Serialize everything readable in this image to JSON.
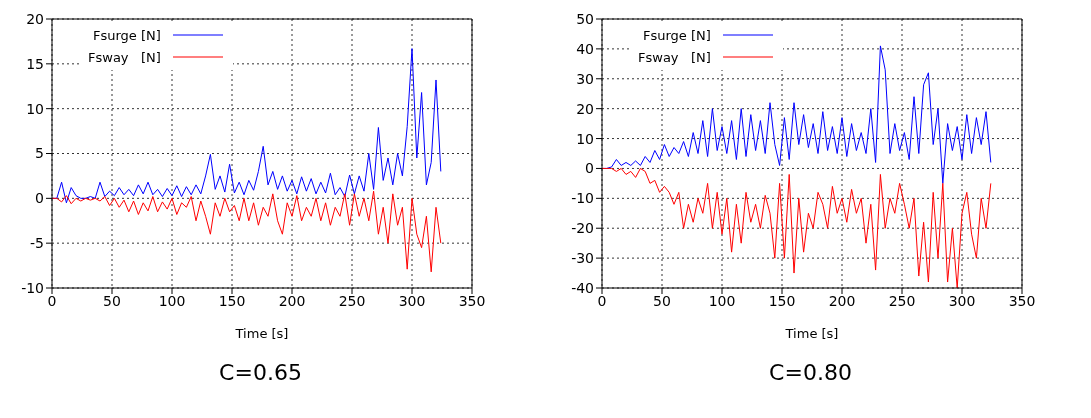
{
  "chart_data": [
    {
      "type": "line",
      "title": "C=0.65",
      "xlabel": "Time [s]",
      "xlim": [
        0,
        350
      ],
      "xticks": [
        0,
        50,
        100,
        150,
        200,
        250,
        300,
        350
      ],
      "ylim": [
        -10,
        20
      ],
      "yticks": [
        -10,
        -5,
        0,
        5,
        10,
        15,
        20
      ],
      "grid": true,
      "legend": "top left",
      "x": [
        0,
        4,
        8,
        12,
        16,
        20,
        24,
        28,
        32,
        36,
        40,
        44,
        48,
        52,
        56,
        60,
        64,
        68,
        72,
        76,
        80,
        84,
        88,
        92,
        96,
        100,
        104,
        108,
        112,
        116,
        120,
        124,
        128,
        132,
        136,
        140,
        144,
        148,
        152,
        156,
        160,
        164,
        168,
        172,
        176,
        180,
        184,
        188,
        192,
        196,
        200,
        204,
        208,
        212,
        216,
        220,
        224,
        228,
        232,
        236,
        240,
        244,
        248,
        252,
        256,
        260,
        264,
        268,
        272,
        276,
        280,
        284,
        288,
        292,
        296,
        300,
        304,
        308,
        312,
        316,
        320,
        324
      ],
      "series": [
        {
          "name": "Fsurge [N]",
          "color": "#0000ff",
          "values": [
            0,
            0,
            1.8,
            -0.5,
            1.2,
            0.3,
            0,
            0,
            0.2,
            0,
            1.8,
            0.2,
            0.8,
            0.3,
            1.2,
            0.4,
            1.0,
            0.3,
            1.5,
            0.5,
            1.8,
            0.4,
            1.0,
            0.2,
            1.1,
            0.3,
            1.4,
            0.2,
            1.3,
            0.4,
            1.5,
            0.5,
            2.5,
            4.9,
            1.0,
            2.5,
            0.7,
            3.8,
            0.6,
            1.8,
            0.4,
            2.0,
            0.9,
            3.0,
            5.8,
            1.5,
            3.0,
            1.0,
            2.5,
            0.8,
            2.0,
            0.5,
            2.4,
            0.8,
            2.2,
            0.5,
            1.8,
            0.6,
            2.8,
            0.4,
            1.2,
            0.2,
            2.6,
            0.5,
            2.5,
            0.8,
            5.0,
            1.0,
            7.9,
            2.0,
            4.5,
            1.5,
            5.0,
            2.5,
            8.0,
            16.7,
            4.5,
            11.8,
            1.5,
            4.0,
            13.2,
            3.0
          ]
        },
        {
          "name": "Fsway   [N]",
          "color": "#ff0000",
          "values": [
            0,
            0,
            -0.4,
            0.3,
            -0.6,
            0,
            -0.3,
            0,
            -0.2,
            0,
            -0.3,
            0.2,
            -0.8,
            0,
            -1.0,
            -0.2,
            -1.5,
            -0.3,
            -1.8,
            -0.5,
            -1.4,
            0.2,
            -1.5,
            -0.4,
            -1.2,
            0,
            -1.8,
            -0.5,
            -1.0,
            0.2,
            -2.5,
            -0.3,
            -2.0,
            -4.0,
            -0.5,
            -2.0,
            0,
            -1.5,
            -0.8,
            -2.5,
            0,
            -2.5,
            -0.5,
            -3.0,
            -1.0,
            -2.0,
            0.5,
            -2.5,
            -4.0,
            -0.5,
            -2.0,
            0.3,
            -2.5,
            -1.0,
            -2.0,
            0,
            -2.5,
            -0.5,
            -3.0,
            -1.0,
            -2.0,
            0.5,
            -3.0,
            0.5,
            -2.0,
            0,
            -2.5,
            0.8,
            -4.0,
            -1.0,
            -5.0,
            0.5,
            -3.0,
            -1.0,
            -7.9,
            0,
            -4.0,
            -5.5,
            -2.0,
            -8.2,
            -1.0,
            -5.0
          ]
        }
      ]
    },
    {
      "type": "line",
      "title": "C=0.80",
      "xlabel": "Time [s]",
      "xlim": [
        0,
        350
      ],
      "xticks": [
        0,
        50,
        100,
        150,
        200,
        250,
        300,
        350
      ],
      "ylim": [
        -40,
        50
      ],
      "yticks": [
        -40,
        -30,
        -20,
        -10,
        0,
        10,
        20,
        30,
        40,
        50
      ],
      "grid": true,
      "legend": "top left",
      "x": [
        0,
        4,
        8,
        12,
        16,
        20,
        24,
        28,
        32,
        36,
        40,
        44,
        48,
        52,
        56,
        60,
        64,
        68,
        72,
        76,
        80,
        84,
        88,
        92,
        96,
        100,
        104,
        108,
        112,
        116,
        120,
        124,
        128,
        132,
        136,
        140,
        144,
        148,
        152,
        156,
        160,
        164,
        168,
        172,
        176,
        180,
        184,
        188,
        192,
        196,
        200,
        204,
        208,
        212,
        216,
        220,
        224,
        228,
        232,
        236,
        240,
        244,
        248,
        252,
        256,
        260,
        264,
        268,
        272,
        276,
        280,
        284,
        288,
        292,
        296,
        300,
        304,
        308,
        312,
        316,
        320,
        324
      ],
      "series": [
        {
          "name": "Fsurge [N]",
          "color": "#0000ff",
          "values": [
            0,
            0,
            0.5,
            3,
            1,
            2,
            1,
            2.5,
            1,
            4,
            2,
            6,
            3,
            8,
            4,
            7,
            5,
            9,
            4,
            12,
            5,
            16,
            4,
            20,
            6,
            14,
            5,
            16,
            3,
            20,
            4,
            18,
            6,
            16,
            5,
            22,
            8,
            1,
            17,
            3,
            22,
            8,
            18,
            7,
            15,
            5,
            19,
            6,
            14,
            5,
            17,
            4,
            15,
            6,
            12,
            5,
            20,
            2,
            41,
            33,
            5,
            15,
            6,
            12,
            3,
            24,
            5,
            28,
            32,
            8,
            20,
            -5,
            15,
            6,
            14,
            3,
            18,
            5,
            17,
            8,
            19,
            2
          ]
        },
        {
          "name": "Fsway   [N]",
          "color": "#ff0000",
          "values": [
            0,
            0,
            0,
            -1,
            0,
            -2,
            -1,
            -3,
            0,
            -1,
            -5,
            -4,
            -8,
            -6,
            -8,
            -12,
            -8,
            -20,
            -12,
            -18,
            -10,
            -15,
            -5,
            -20,
            -8,
            -22,
            -10,
            -28,
            -12,
            -25,
            -8,
            -18,
            -12,
            -20,
            -9,
            -15,
            -30,
            -5,
            -30,
            -2,
            -35,
            -10,
            -28,
            -15,
            -20,
            -8,
            -12,
            -20,
            -6,
            -15,
            -10,
            -18,
            -7,
            -15,
            -10,
            -25,
            -12,
            -34,
            -2,
            -20,
            -10,
            -15,
            -5,
            -12,
            -20,
            -10,
            -36,
            -18,
            -38,
            -8,
            -30,
            -5,
            -38,
            -20,
            -40,
            -15,
            -8,
            -22,
            -30,
            -10,
            -20,
            -5
          ]
        }
      ]
    }
  ]
}
